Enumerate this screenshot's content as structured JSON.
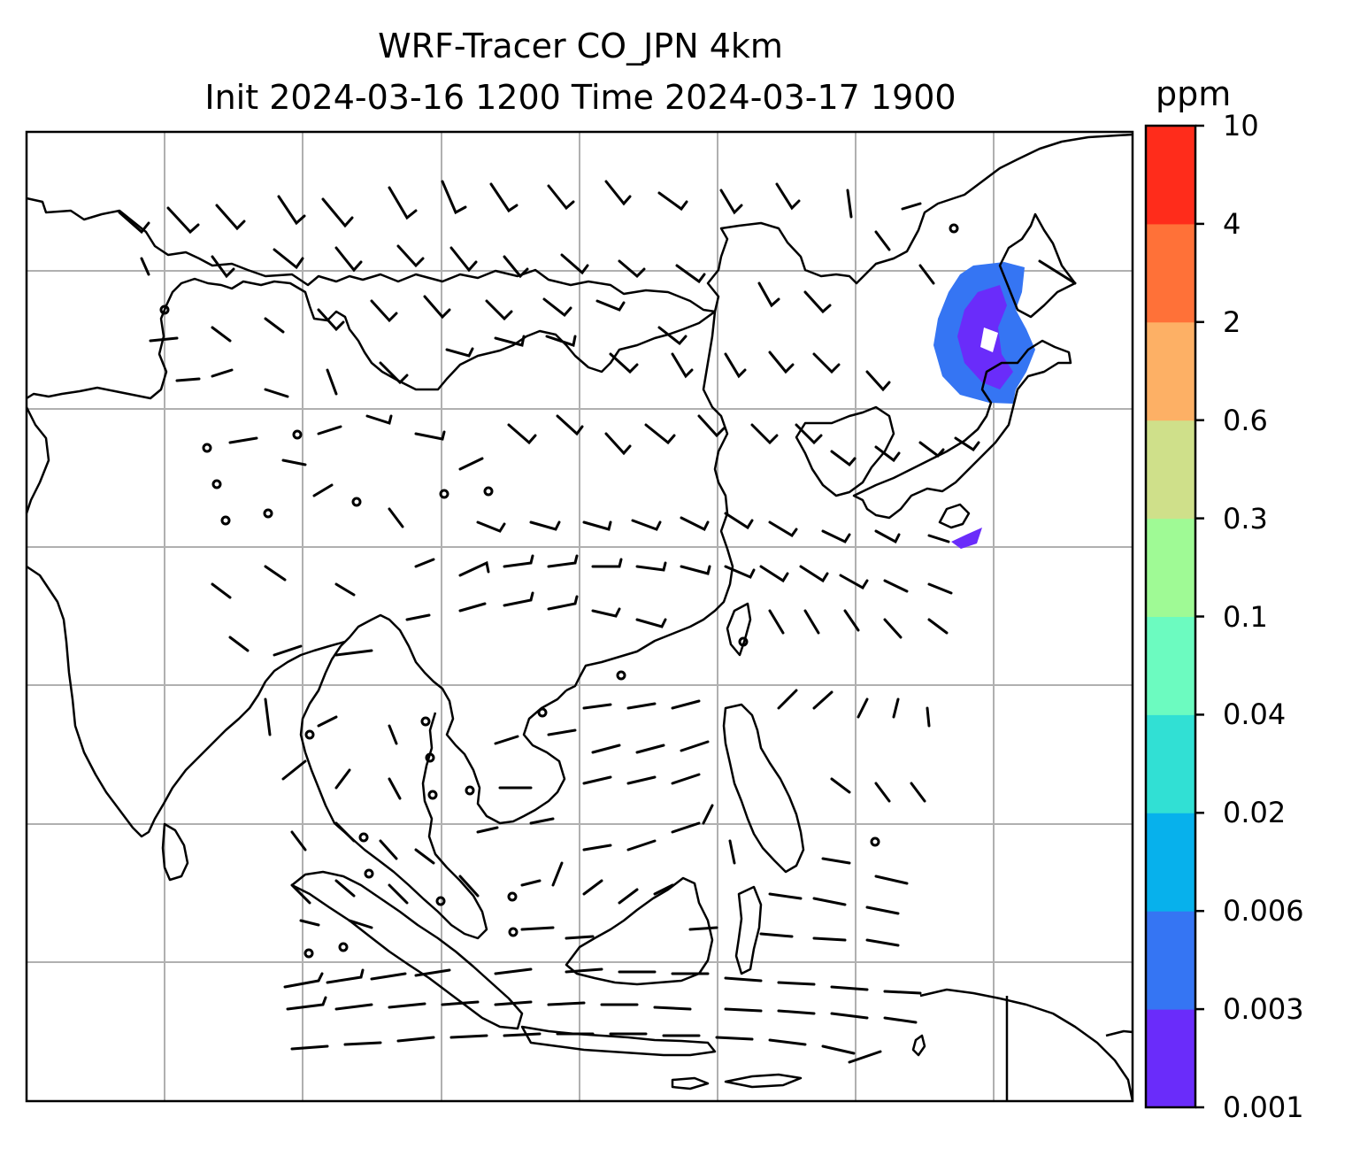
{
  "title": {
    "line1": "WRF-Tracer CO_JPN 4km",
    "line2": "Init 2024-03-16 1200 Time 2024-03-17 1900"
  },
  "colorbar": {
    "unit": "ppm",
    "levels": [
      "0.001",
      "0.003",
      "0.006",
      "0.02",
      "0.04",
      "0.1",
      "0.3",
      "0.6",
      "2",
      "4",
      "10"
    ],
    "colors": [
      "#6a2cfa",
      "#3575f3",
      "#07b1ec",
      "#31e0d4",
      "#6cfbc0",
      "#9ffa95",
      "#cfe08a",
      "#fdb065",
      "#ff7138",
      "#ff2c1b"
    ]
  },
  "map": {
    "tracer_color": "#4a55f0",
    "coastline_color": "#000000",
    "grid_color": "#b0b0b0"
  }
}
